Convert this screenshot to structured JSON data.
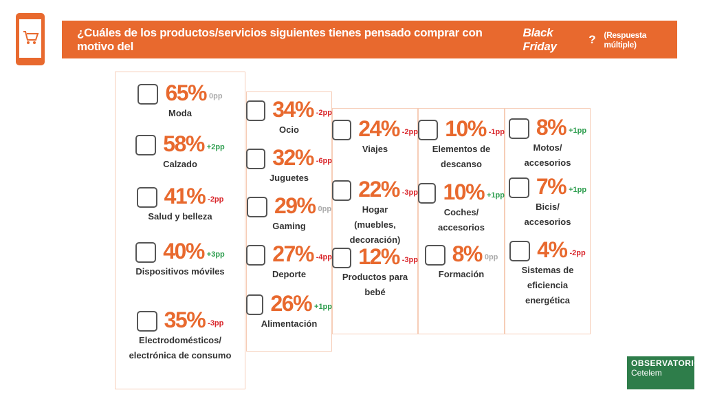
{
  "header": {
    "title": "¿Cuáles de los productos/servicios siguientes tienes pensado comprar con motivo del",
    "title_emphasis": "Black Friday",
    "title_end": "?",
    "subtitle": "(Respuesta múltiple)"
  },
  "columns": [
    {
      "items": [
        {
          "value": "65%",
          "change": "0pp",
          "label": "Moda"
        },
        {
          "value": "58%",
          "change": "+2pp",
          "label": "Calzado"
        },
        {
          "value": "41%",
          "change": "-2pp",
          "label": "Salud y belleza"
        },
        {
          "value": "40%",
          "change": "+3pp",
          "label": "Dispositivos móviles"
        },
        {
          "value": "35%",
          "change": "-3pp",
          "label": "Electrodomésticos/ electrónica de consumo"
        }
      ]
    },
    {
      "items": [
        {
          "value": "34%",
          "change": "-2pp",
          "label": "Ocio"
        },
        {
          "value": "32%",
          "change": "-6pp",
          "label": "Juguetes"
        },
        {
          "value": "29%",
          "change": "0pp",
          "label": "Gaming"
        },
        {
          "value": "27%",
          "change": "-4pp",
          "label": "Deporte"
        },
        {
          "value": "26%",
          "change": "+1pp",
          "label": "Alimentación"
        }
      ]
    },
    {
      "items": [
        {
          "value": "24%",
          "change": "-2pp",
          "label": "Viajes"
        },
        {
          "value": "22%",
          "change": "-3pp",
          "label": "Hogar (muebles, decoración)"
        },
        {
          "value": "12%",
          "change": "-3pp",
          "label": "Productos para bebé"
        }
      ]
    },
    {
      "items": [
        {
          "value": "10%",
          "change": "-1pp",
          "label": "Elementos de descanso"
        },
        {
          "value": "10%",
          "change": "+1pp",
          "label": "Coches/ accesorios"
        },
        {
          "value": "8%",
          "change": "0pp",
          "label": "Formación"
        }
      ]
    },
    {
      "items": [
        {
          "value": "8%",
          "change": "+1pp",
          "label": "Motos/ accesorios"
        },
        {
          "value": "7%",
          "change": "+1pp",
          "label": "Bicis/ accesorios"
        },
        {
          "value": "4%",
          "change": "-2pp",
          "label": "Sistemas de eficiencia energética"
        }
      ]
    }
  ],
  "logo": {
    "name": "OBSERVATORIO",
    "brand": "Cetelem"
  }
}
